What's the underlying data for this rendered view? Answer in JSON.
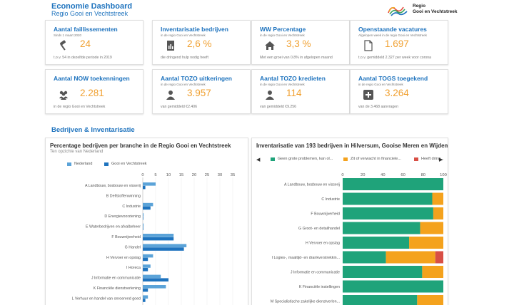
{
  "header": {
    "title": "Economie Dashboard",
    "subtitle": "Regio Gooi en Vechtstreek"
  },
  "logo": {
    "line1": "Regio",
    "line2": "Gooi en Vechtstreek"
  },
  "kpis": [
    {
      "title": "Aantal faillissementen",
      "subtitle": "Sinds 1 maart 2020",
      "value": "24",
      "footer": "t.o.v. 54 in dezelfde periode in 2019",
      "icon": "gavel-icon"
    },
    {
      "title": "Inventarisatie bedrijven",
      "subtitle": "in de regio Gooi en Vechtstreek",
      "value": "2,6 %",
      "footer": "die dringend hulp nodig heeft",
      "icon": "document-icon"
    },
    {
      "title": "WW Percentage",
      "subtitle": "in de regio Gooi en Vechtstreek",
      "value": "3,3 %",
      "footer": "Met een groei van 0.8% in afgelopen maand",
      "icon": "home-icon"
    },
    {
      "title": "Openstaande vacatures",
      "subtitle": "Afgelopen week in de regio Gooi en Vechtstreek",
      "value": "1.697",
      "footer": "t.o.v. gemiddeld 2.327 per week voor corona",
      "icon": "file-icon"
    },
    {
      "title": "Aantal NOW toekenningen",
      "subtitle": "",
      "value": "2.281",
      "footer": "in de regio Gooi en Vechtstreek",
      "icon": "users-icon"
    },
    {
      "title": "Aantal TOZO uitkeringen",
      "subtitle": "in de regio Gooi en Vechtstreek",
      "value": "3.957",
      "footer": "van gemiddeld €2.406",
      "icon": "person-icon"
    },
    {
      "title": "Aantal TOZO kredieten",
      "subtitle": "in de regio Gooi en Vechtstreek",
      "value": "114",
      "footer": "van gemiddeld €9.256",
      "icon": "person-icon"
    },
    {
      "title": "Aantal TOGS toegekend",
      "subtitle": "in de regio Gooi en Vechtstreek",
      "value": "3.264",
      "footer": "van de 3.468 aanvragen",
      "icon": "plus-box-icon"
    }
  ],
  "section_title": "Bedrijven & Inventarisatie",
  "colors": {
    "accent": "#1e73be",
    "value": "#f0a030",
    "nl": "#5ba3d8",
    "gv": "#1e73be",
    "green": "#1fa37a",
    "orange": "#f4a21d",
    "red": "#d84f45"
  },
  "chart_data": [
    {
      "type": "bar",
      "orientation": "horizontal",
      "title": "Percentage bedrijven per branche in de Regio Gooi en Vechtstreek",
      "subtitle": "Ten opzichte van Nederland",
      "legend": [
        "Nederland",
        "Gooi en Vechtstreek"
      ],
      "xlim": [
        0,
        35
      ],
      "xticks": [
        "0",
        "5",
        "10",
        "15",
        "20",
        "25",
        "30",
        "35"
      ],
      "categories": [
        "A Landbouw, bosbouw en visserij",
        "B Delfstoffenwinning",
        "C Industrie",
        "D Energievoorziening",
        "E Waterbedrijven en afvalbeheer",
        "F Bouwnijverheid",
        "G Handel",
        "H Vervoer en opslag",
        "I Horeca",
        "J Informatie en communicatie",
        "K Financiële dienstverlening",
        "L Verhuur en handel van onroerend goed"
      ],
      "series": [
        {
          "name": "Nederland",
          "values": [
            5,
            0,
            4,
            0.3,
            0.3,
            12,
            17,
            4,
            3,
            7,
            9,
            2
          ]
        },
        {
          "name": "Gooi en Vechtstreek",
          "values": [
            1,
            0,
            3,
            0.2,
            0.2,
            12,
            16,
            2,
            2,
            10,
            2,
            1
          ]
        }
      ]
    },
    {
      "type": "bar",
      "orientation": "horizontal",
      "stacked": true,
      "title": "Inventarisatie van 193 bedrijven in Hilversum, Gooise Meren en Wijdem...",
      "legend": [
        "Geen grote problemen, kan ol...",
        "Zit of verwacht in financiele...",
        "Heeft dring..."
      ],
      "xlim": [
        0,
        100
      ],
      "xticks": [
        "0",
        "20",
        "40",
        "60",
        "80",
        "100"
      ],
      "categories": [
        "A Landbouw, bosbouw en visserij",
        "C Industrie",
        "F Bouwnijverheid",
        "G Groot- en detailhandel",
        "H Vervoer en opslag",
        "I Logies-, maaltijd- en drankverstrekkin...",
        "J Informatie en communicatie",
        "K Financiële instellingen",
        "M Specialistische zakelijke dienstverlen..."
      ],
      "series": [
        {
          "name": "Geen grote problemen",
          "values": [
            100,
            89,
            90,
            77,
            66,
            43,
            79,
            100,
            74
          ]
        },
        {
          "name": "Zit of verwacht in financiele problemen",
          "values": [
            0,
            11,
            10,
            23,
            34,
            49,
            21,
            0,
            26
          ]
        },
        {
          "name": "Heeft dringend hulp nodig",
          "values": [
            0,
            0,
            0,
            0,
            0,
            8,
            0,
            0,
            0
          ]
        }
      ]
    }
  ]
}
